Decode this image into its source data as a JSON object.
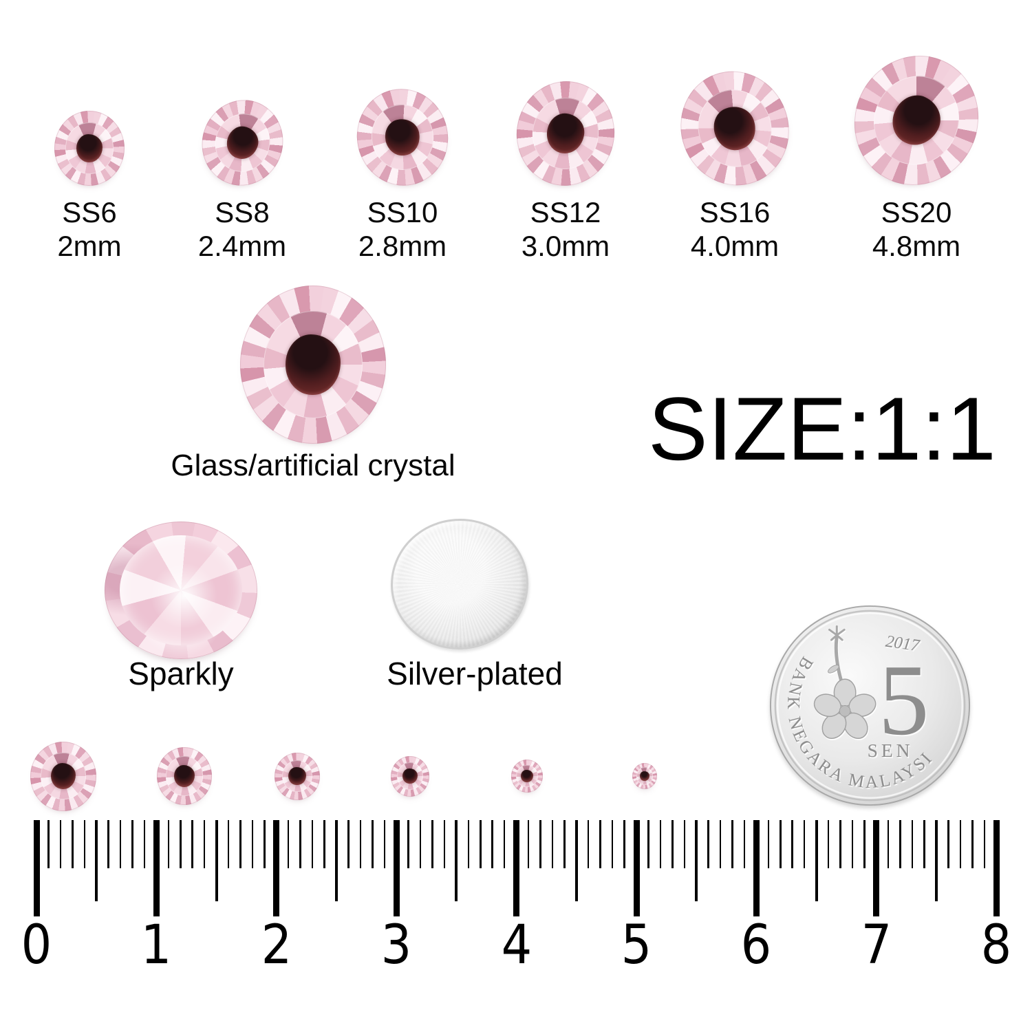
{
  "size_chart": {
    "items": [
      {
        "size": "SS6",
        "mm": "2mm"
      },
      {
        "size": "SS8",
        "mm": "2.4mm"
      },
      {
        "size": "SS10",
        "mm": "2.8mm"
      },
      {
        "size": "SS12",
        "mm": "3.0mm"
      },
      {
        "size": "SS16",
        "mm": "4.0mm"
      },
      {
        "size": "SS20",
        "mm": "4.8mm"
      }
    ]
  },
  "material": {
    "label": "Glass/artificial crystal"
  },
  "scale": {
    "label": "SIZE:1:1"
  },
  "features": {
    "sparkly": "Sparkly",
    "silver": "Silver-plated"
  },
  "coin": {
    "year": "2017",
    "denomination": "5",
    "unit": "SEN",
    "issuer": "BANK NEGARA MALAYSIA"
  },
  "ruler": {
    "unit_labels": [
      "0",
      "1",
      "2",
      "3",
      "4",
      "5",
      "6",
      "7",
      "8"
    ]
  },
  "colors": {
    "background": "#ffffff",
    "crystal_pink_light": "#f6dde6",
    "crystal_pink_deep": "#d697ad",
    "crystal_center_dark": "#4f1d1f",
    "silver_disc": "#e9e9e9",
    "coin_silver": "#d6d6d6",
    "text": "#000000"
  }
}
